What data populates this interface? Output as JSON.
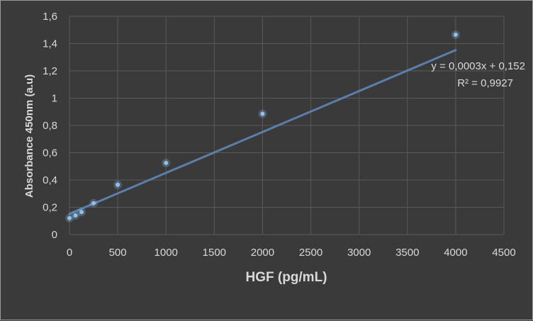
{
  "chart_data": {
    "type": "scatter",
    "xlabel": "HGF (pg/mL)",
    "ylabel": "Absorbance 450nm (a.u)",
    "xlim": [
      0,
      4500
    ],
    "ylim": [
      0,
      1.6
    ],
    "x_ticks": [
      "0",
      "500",
      "1000",
      "1500",
      "2000",
      "2500",
      "3000",
      "3500",
      "4000",
      "4500"
    ],
    "y_ticks": [
      "0",
      "0,2",
      "0,4",
      "0,6",
      "0,8",
      "1",
      "1,2",
      "1,4",
      "1,6"
    ],
    "grid": true,
    "points": [
      {
        "x": 0,
        "y": 0.12
      },
      {
        "x": 62.5,
        "y": 0.14
      },
      {
        "x": 125,
        "y": 0.165
      },
      {
        "x": 250,
        "y": 0.23
      },
      {
        "x": 500,
        "y": 0.365
      },
      {
        "x": 1000,
        "y": 0.525
      },
      {
        "x": 2000,
        "y": 0.885
      },
      {
        "x": 4000,
        "y": 1.465
      }
    ],
    "trendline": {
      "slope": 0.0003,
      "intercept": 0.152,
      "x_range": [
        0,
        4000
      ]
    },
    "annotations": {
      "equation": "y = 0,0003x + 0,152",
      "r_squared": "R² = 0,9927"
    },
    "colors": {
      "background": "#3a3a3a",
      "grid": "#595959",
      "trendline": "#5a7fa8",
      "marker": "#8fc1ee",
      "text": "#d9d9d9"
    }
  }
}
